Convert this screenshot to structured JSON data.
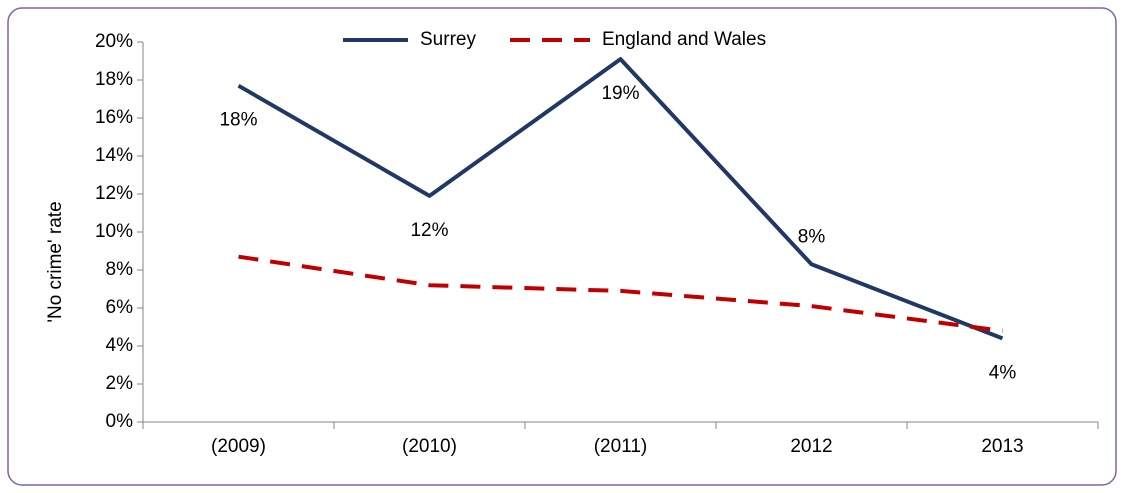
{
  "chart_data": {
    "type": "line",
    "ylabel": "'No crime' rate",
    "categories": [
      "(2009)",
      "(2010)",
      "(2011)",
      "2012",
      "2013"
    ],
    "series": [
      {
        "name": "Surrey",
        "color": "#1f3864",
        "dash": "solid",
        "values": [
          17.7,
          11.9,
          19.1,
          8.3,
          4.4
        ],
        "value_labels": [
          "18%",
          "12%",
          "19%",
          "8%",
          "4%"
        ]
      },
      {
        "name": "England and Wales",
        "color": "#c00000",
        "dash": "dashed",
        "values": [
          8.7,
          7.2,
          6.9,
          6.1,
          4.8
        ]
      }
    ],
    "ylim": [
      0,
      20
    ],
    "yticks": [
      {
        "value": 0,
        "label": "0%"
      },
      {
        "value": 2,
        "label": "2%"
      },
      {
        "value": 4,
        "label": "4%"
      },
      {
        "value": 6,
        "label": "6%"
      },
      {
        "value": 8,
        "label": "8%"
      },
      {
        "value": 10,
        "label": "10%"
      },
      {
        "value": 12,
        "label": "12%"
      },
      {
        "value": 14,
        "label": "14%"
      },
      {
        "value": 16,
        "label": "16%"
      },
      {
        "value": 18,
        "label": "18%"
      },
      {
        "value": 20,
        "label": "20%"
      }
    ],
    "grid": false,
    "legend": "top"
  }
}
